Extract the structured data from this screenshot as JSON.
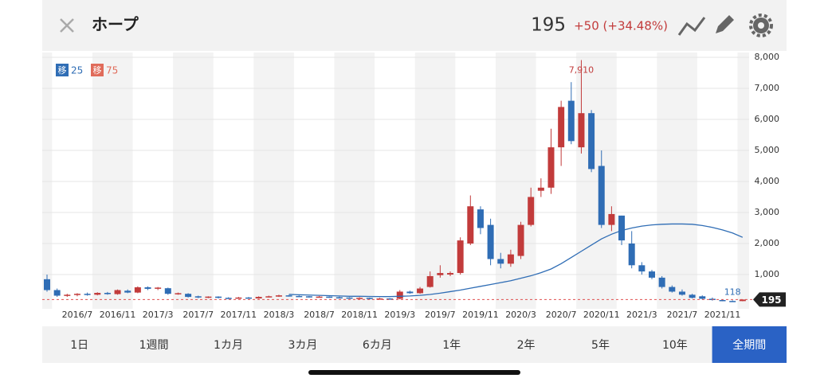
{
  "header": {
    "title": "ホープ",
    "price": "195",
    "change": "+50 (+34.48%)"
  },
  "chart_data": {
    "type": "candlestick",
    "categories": [
      null,
      null,
      null,
      "2016/7",
      null,
      null,
      null,
      "2016/11",
      null,
      null,
      null,
      "2017/3",
      null,
      null,
      null,
      "2017/7",
      null,
      null,
      null,
      "2017/11",
      null,
      null,
      null,
      "2018/3",
      null,
      null,
      null,
      "2018/7",
      null,
      null,
      null,
      "2018/11",
      null,
      null,
      null,
      "2019/3",
      null,
      null,
      null,
      "2019/7",
      null,
      null,
      null,
      "2019/11",
      null,
      null,
      null,
      "2020/3",
      null,
      null,
      null,
      "2020/7",
      null,
      null,
      null,
      "2020/11",
      null,
      null,
      null,
      "2021/3",
      null,
      null,
      null,
      "2021/7",
      null,
      null,
      null,
      "2021/11",
      null,
      null
    ],
    "open": [
      850,
      500,
      320,
      350,
      380,
      350,
      410,
      370,
      480,
      420,
      590,
      560,
      560,
      380,
      380,
      300,
      260,
      290,
      250,
      230,
      260,
      230,
      280,
      290,
      330,
      310,
      300,
      280,
      290,
      270,
      260,
      240,
      250,
      220,
      230,
      220,
      450,
      400,
      600,
      980,
      1000,
      1050,
      2000,
      3100,
      2600,
      1500,
      1350,
      1600,
      2600,
      3700,
      3800,
      5100,
      6600,
      5100,
      6200,
      4500,
      2600,
      2900,
      2000,
      1300,
      1100,
      900,
      600,
      450,
      350,
      300,
      220,
      180,
      150,
      145
    ],
    "high": [
      1000,
      550,
      380,
      400,
      420,
      430,
      440,
      520,
      520,
      620,
      620,
      600,
      580,
      420,
      400,
      320,
      300,
      300,
      270,
      280,
      280,
      300,
      320,
      350,
      340,
      330,
      310,
      310,
      300,
      290,
      270,
      270,
      260,
      250,
      240,
      500,
      480,
      600,
      1100,
      1300,
      1100,
      2200,
      3550,
      3200,
      2800,
      1700,
      1800,
      2700,
      3800,
      4100,
      5700,
      6600,
      7200,
      7910,
      6300,
      5000,
      3200,
      2900,
      2400,
      1400,
      1150,
      950,
      650,
      520,
      380,
      330,
      260,
      200,
      170,
      200
    ],
    "low": [
      450,
      280,
      280,
      300,
      320,
      330,
      350,
      350,
      400,
      400,
      500,
      500,
      350,
      350,
      260,
      240,
      240,
      230,
      220,
      220,
      220,
      220,
      260,
      280,
      290,
      280,
      260,
      260,
      250,
      240,
      220,
      220,
      200,
      200,
      190,
      200,
      380,
      380,
      580,
      900,
      950,
      1000,
      1950,
      2300,
      1300,
      1200,
      1250,
      1500,
      2550,
      3500,
      3600,
      4500,
      5200,
      4900,
      4300,
      2500,
      2400,
      1950,
      1200,
      1000,
      850,
      550,
      420,
      320,
      230,
      200,
      160,
      140,
      118,
      140
    ],
    "close": [
      500,
      320,
      350,
      380,
      350,
      410,
      370,
      500,
      420,
      590,
      540,
      580,
      380,
      400,
      280,
      260,
      290,
      250,
      230,
      260,
      230,
      280,
      300,
      330,
      310,
      300,
      280,
      290,
      270,
      260,
      240,
      250,
      220,
      230,
      210,
      450,
      400,
      550,
      950,
      1050,
      1050,
      2100,
      3200,
      2500,
      1500,
      1350,
      1650,
      2600,
      3500,
      3800,
      5100,
      6400,
      5300,
      6200,
      4400,
      2600,
      2950,
      2100,
      1300,
      1100,
      900,
      600,
      450,
      350,
      250,
      220,
      180,
      150,
      145,
      195
    ],
    "up_color": "#c23b3b",
    "down_color": "#2f6db5",
    "moving_averages": [
      {
        "badge": "移",
        "period": 25,
        "color": "#2f6db5",
        "values": [
          null,
          null,
          null,
          null,
          null,
          null,
          null,
          null,
          null,
          null,
          null,
          null,
          null,
          null,
          null,
          null,
          null,
          null,
          null,
          null,
          null,
          null,
          null,
          null,
          360,
          350,
          340,
          330,
          320,
          310,
          300,
          300,
          295,
          290,
          290,
          300,
          310,
          330,
          360,
          400,
          450,
          500,
          560,
          620,
          680,
          740,
          800,
          880,
          960,
          1060,
          1180,
          1350,
          1550,
          1750,
          1950,
          2150,
          2300,
          2420,
          2500,
          2560,
          2600,
          2620,
          2630,
          2630,
          2620,
          2580,
          2520,
          2440,
          2340,
          2200
        ]
      },
      {
        "badge": "移",
        "period": 75,
        "color": "#e06b5a"
      }
    ],
    "high_label": "7,910",
    "low_label": "118",
    "price_line": 195,
    "ylim": [
      0,
      8000
    ],
    "yticks": [
      {
        "value": 1000,
        "label": "1,000"
      },
      {
        "value": 2000,
        "label": "2,000"
      },
      {
        "value": 3000,
        "label": "3,000"
      },
      {
        "value": 4000,
        "label": "4,000"
      },
      {
        "value": 5000,
        "label": "5,000"
      },
      {
        "value": 6000,
        "label": "6,000"
      },
      {
        "value": 7000,
        "label": "7,000"
      },
      {
        "value": 8000,
        "label": "8,000"
      }
    ],
    "grid": true
  },
  "ranges": [
    "1日",
    "1週間",
    "1カ月",
    "3カ月",
    "6カ月",
    "1年",
    "2年",
    "5年",
    "10年",
    "全期間"
  ],
  "active_range": 9
}
